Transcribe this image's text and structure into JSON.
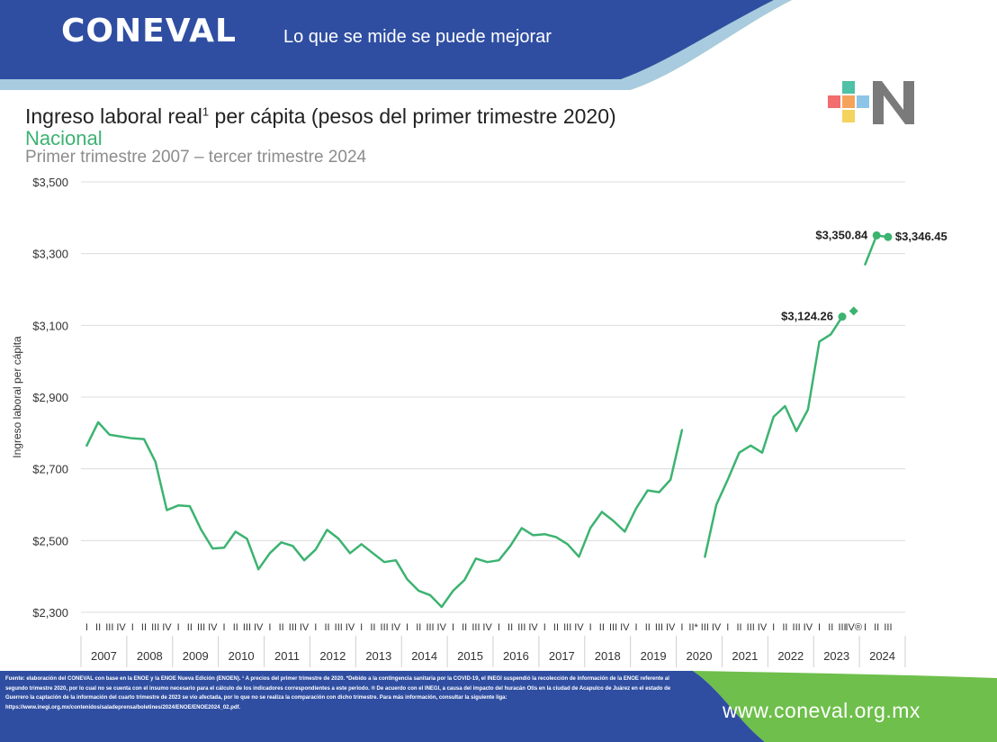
{
  "header": {
    "brand": "CONEVAL",
    "tagline": "Lo que se mide se puede mejorar"
  },
  "colors": {
    "header_blue": "#2f4ea2",
    "header_green": "#6ebf4b",
    "series_green": "#3cb371",
    "title_green": "#3cb371"
  },
  "chart_data": {
    "type": "line",
    "title": "Ingreso laboral real",
    "title_sup": "1",
    "title_rest": " per cápita (pesos del primer trimestre 2020)",
    "subtitle": "Nacional",
    "period": "Primer trimestre 2007 – tercer trimestre 2024",
    "ylabel": "Ingreso laboral per cápita",
    "ylim": [
      2300,
      3500
    ],
    "yticks": [
      "$3,500",
      "$3,300",
      "$3,100",
      "$2,900",
      "$2,700",
      "$2,500",
      "$2,300"
    ],
    "ytick_values": [
      3500,
      3300,
      3100,
      2900,
      2700,
      2500,
      2300
    ],
    "grid": true,
    "years": [
      "2007",
      "2008",
      "2009",
      "2010",
      "2011",
      "2012",
      "2013",
      "2014",
      "2015",
      "2016",
      "2017",
      "2018",
      "2019",
      "2020",
      "2021",
      "2022",
      "2023",
      "2024"
    ],
    "quarter_labels": [
      "I",
      "II",
      "III",
      "IV"
    ],
    "quarter_labels_2020": [
      "I",
      "II*",
      "III",
      "IV"
    ],
    "quarter_labels_2023": [
      "I",
      "II",
      "III",
      "IV®"
    ],
    "quarter_labels_2024": [
      "I",
      "II",
      "III"
    ],
    "series": [
      {
        "values": [
          2765,
          2830,
          2795,
          2790,
          2785,
          2783,
          2720,
          2585,
          2598,
          2596,
          2530,
          2478,
          2480,
          2525,
          2505,
          2420,
          2465,
          2495,
          2485,
          2445,
          2475,
          2530,
          2505,
          2465,
          2490,
          2465,
          2440,
          2445,
          2392,
          2360,
          2348,
          2315,
          2360,
          2390,
          2450,
          2440,
          2445,
          2485,
          2535,
          2515,
          2518,
          2510,
          2490,
          2455,
          2535,
          2580,
          2555,
          2525,
          2590,
          2640,
          2635,
          2670,
          2808,
          null,
          2455,
          2600,
          2670,
          2745,
          2765,
          2745,
          2845,
          2875,
          2805,
          2865,
          3055,
          3075,
          3124.26,
          null,
          3270,
          3350.84,
          3346.45
        ]
      }
    ],
    "isolated_point": {
      "index": 67,
      "value": 3140
    },
    "markers": [
      {
        "index": 66,
        "value": 3124.26,
        "label": "$3,124.26",
        "label_side": "left"
      },
      {
        "index": 69,
        "value": 3350.84,
        "label": "$3,350.84",
        "label_side": "left"
      },
      {
        "index": 70,
        "value": 3346.45,
        "label": "$3,346.45",
        "label_side": "right"
      }
    ]
  },
  "footer": {
    "note": "Fuente: elaboración del CONEVAL con base en la ENOE y la ENOE Nueva Edición (ENOEN). ¹ A precios del primer trimestre de 2020. *Debido a la contingencia sanitaria por la COVID-19, el INEGI suspendió la recolección de información de la ENOE referente al segundo trimestre 2020, por lo cual no se cuenta con el insumo necesario para el cálculo de los indicadores correspondientes a este periodo. ® De acuerdo con el INEGI, a causa del impacto del huracán Otis en la ciudad de Acapulco de Juárez en el estado de Guerrero la captación de la información del cuarto trimestre de 2023 se vio afectada, por lo que no se realiza la comparación con dicho trimestre. Para más información, consultar la siguiente liga: https://www.inegi.org.mx/contenidos/saladeprensa/boletines/2024/ENOE/ENOE2024_02.pdf.",
    "url": "www.coneval.org.mx"
  }
}
